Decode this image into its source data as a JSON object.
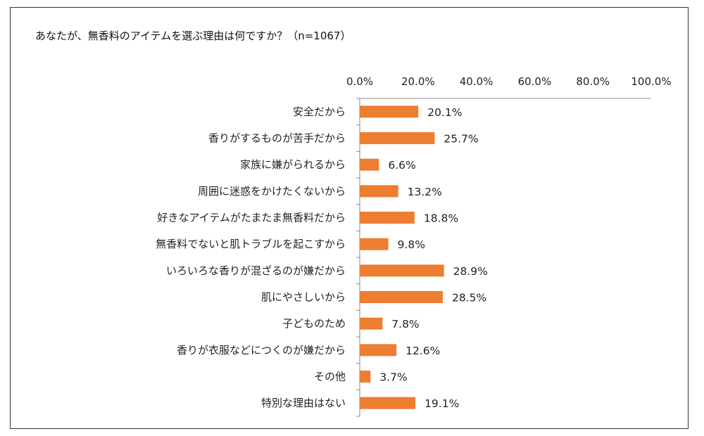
{
  "chart_data": {
    "type": "bar",
    "orientation": "horizontal",
    "title": "あなたが、無香料のアイテムを選ぶ理由は何ですか？（n=1067）",
    "xlim": [
      0,
      100
    ],
    "tick_labels": [
      "0.0%",
      "20.0%",
      "40.0%",
      "60.0%",
      "80.0%",
      "100.0%"
    ],
    "tick_values": [
      0,
      20,
      40,
      60,
      80,
      100
    ],
    "axis_position": "top",
    "grid": false,
    "legend": "none",
    "bar_color": "#ED7D31",
    "categories": [
      "安全だから",
      "香りがするものが苦手だから",
      "家族に嫌がられるから",
      "周囲に迷惑をかけたくないから",
      "好きなアイテムがたまたま無香料だから",
      "無香料でないと肌トラブルを起こすから",
      "いろいろな香りが混ざるのが嫌だから",
      "肌にやさしいから",
      "子どものため",
      "香りが衣服などにつくのが嫌だから",
      "その他",
      "特別な理由はない"
    ],
    "values": [
      20.1,
      25.7,
      6.6,
      13.2,
      18.8,
      9.8,
      28.9,
      28.5,
      7.8,
      12.6,
      3.7,
      19.1
    ],
    "value_labels": [
      "20.1%",
      "25.7%",
      "6.6%",
      "13.2%",
      "18.8%",
      "9.8%",
      "28.9%",
      "28.5%",
      "7.8%",
      "12.6%",
      "3.7%",
      "19.1%"
    ]
  }
}
